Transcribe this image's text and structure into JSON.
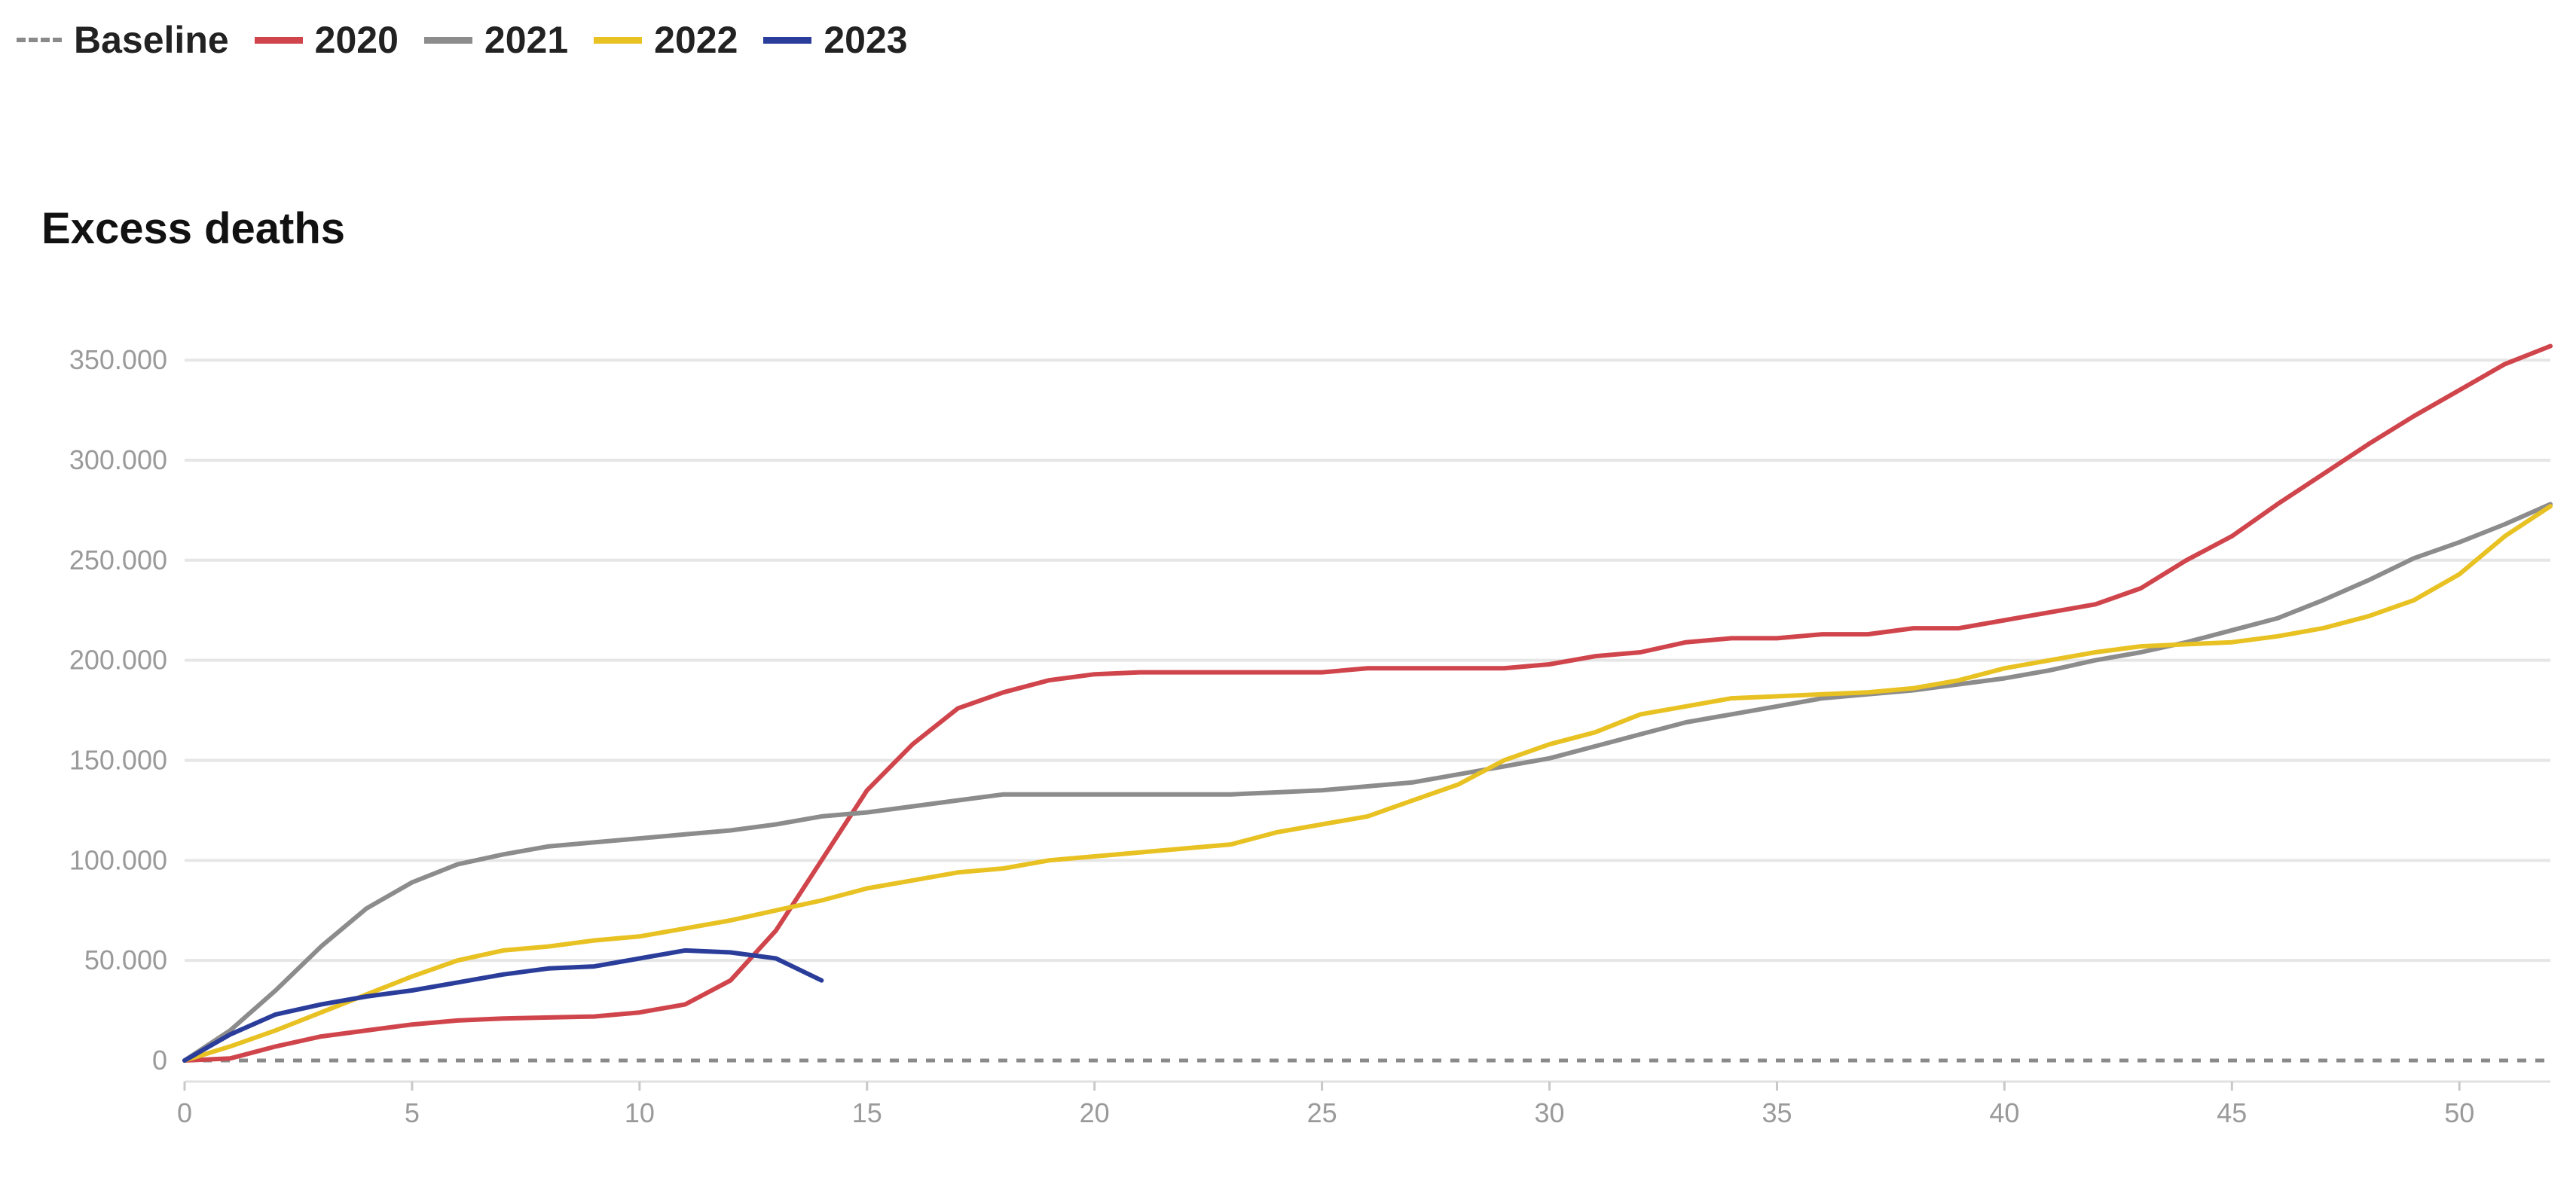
{
  "chart_data": {
    "type": "line",
    "title": "Excess deaths",
    "xlabel": "",
    "ylabel": "",
    "xlim": [
      0,
      52
    ],
    "ylim": [
      0,
      370000
    ],
    "x_ticks": [
      0,
      5,
      10,
      15,
      20,
      25,
      30,
      35,
      40,
      45,
      50
    ],
    "y_ticks": [
      0,
      50000,
      100000,
      150000,
      200000,
      250000,
      300000,
      350000
    ],
    "y_tick_labels": [
      "0",
      "50.000",
      "100.000",
      "150.000",
      "200.000",
      "250.000",
      "300.000",
      "350.000"
    ],
    "grid": "horizontal",
    "legend_position": "top-left",
    "series": [
      {
        "name": "Baseline",
        "color": "#8a8a8a",
        "dashed": true,
        "x": [
          0,
          52
        ],
        "values": [
          0,
          0
        ]
      },
      {
        "name": "2020",
        "color": "#d0454c",
        "dashed": false,
        "x": [
          0,
          1,
          2,
          3,
          4,
          5,
          6,
          7,
          8,
          9,
          10,
          11,
          12,
          13,
          14,
          15,
          16,
          17,
          18,
          19,
          20,
          21,
          22,
          23,
          24,
          25,
          26,
          27,
          28,
          29,
          30,
          31,
          32,
          33,
          34,
          35,
          36,
          37,
          38,
          39,
          40,
          41,
          42,
          43,
          44,
          45,
          46,
          47,
          48,
          49,
          50,
          51,
          52
        ],
        "values": [
          0,
          1000,
          7000,
          12000,
          15000,
          18000,
          20000,
          21000,
          21500,
          22000,
          24000,
          28000,
          40000,
          65000,
          100000,
          135000,
          158000,
          176000,
          184000,
          190000,
          193000,
          194000,
          194000,
          194000,
          194000,
          194000,
          196000,
          196000,
          196000,
          196000,
          198000,
          202000,
          204000,
          209000,
          211000,
          211000,
          213000,
          213000,
          216000,
          216000,
          220000,
          224000,
          228000,
          236000,
          250000,
          262000,
          278000,
          293000,
          308000,
          322000,
          335000,
          348000,
          357000
        ]
      },
      {
        "name": "2021",
        "color": "#8c8c8c",
        "dashed": false,
        "x": [
          0,
          1,
          2,
          3,
          4,
          5,
          6,
          7,
          8,
          9,
          10,
          11,
          12,
          13,
          14,
          15,
          16,
          17,
          18,
          19,
          20,
          21,
          22,
          23,
          24,
          25,
          26,
          27,
          28,
          29,
          30,
          31,
          32,
          33,
          34,
          35,
          36,
          37,
          38,
          39,
          40,
          41,
          42,
          43,
          44,
          45,
          46,
          47,
          48,
          49,
          50,
          51,
          52
        ],
        "values": [
          0,
          15000,
          35000,
          57000,
          76000,
          89000,
          98000,
          103000,
          107000,
          109000,
          111000,
          113000,
          115000,
          118000,
          122000,
          124000,
          127000,
          130000,
          133000,
          133000,
          133000,
          133000,
          133000,
          133000,
          134000,
          135000,
          137000,
          139000,
          143000,
          147000,
          151000,
          157000,
          163000,
          169000,
          173000,
          177000,
          181000,
          183000,
          185000,
          188000,
          191000,
          195000,
          200000,
          204000,
          209000,
          215000,
          221000,
          230000,
          240000,
          251000,
          259000,
          268000,
          278000
        ]
      },
      {
        "name": "2022",
        "color": "#e8c122",
        "dashed": false,
        "x": [
          0,
          1,
          2,
          3,
          4,
          5,
          6,
          7,
          8,
          9,
          10,
          11,
          12,
          13,
          14,
          15,
          16,
          17,
          18,
          19,
          20,
          21,
          22,
          23,
          24,
          25,
          26,
          27,
          28,
          29,
          30,
          31,
          32,
          33,
          34,
          35,
          36,
          37,
          38,
          39,
          40,
          41,
          42,
          43,
          44,
          45,
          46,
          47,
          48,
          49,
          50,
          51,
          52
        ],
        "values": [
          0,
          7000,
          15000,
          24000,
          33000,
          42000,
          50000,
          55000,
          57000,
          60000,
          62000,
          66000,
          70000,
          75000,
          80000,
          86000,
          90000,
          94000,
          96000,
          100000,
          102000,
          104000,
          106000,
          108000,
          114000,
          118000,
          122000,
          130000,
          138000,
          150000,
          158000,
          164000,
          173000,
          177000,
          181000,
          182000,
          183000,
          184000,
          186000,
          190000,
          196000,
          200000,
          204000,
          207000,
          208000,
          209000,
          212000,
          216000,
          222000,
          230000,
          243000,
          262000,
          277000
        ]
      },
      {
        "name": "2023",
        "color": "#2a3d9a",
        "dashed": false,
        "x": [
          0,
          1,
          2,
          3,
          4,
          5,
          6,
          7,
          8,
          9,
          10,
          11,
          12,
          13,
          14
        ],
        "values": [
          0,
          13000,
          23000,
          28000,
          32000,
          35000,
          39000,
          43000,
          46000,
          47000,
          51000,
          55000,
          54000,
          51000,
          40000
        ]
      }
    ]
  }
}
